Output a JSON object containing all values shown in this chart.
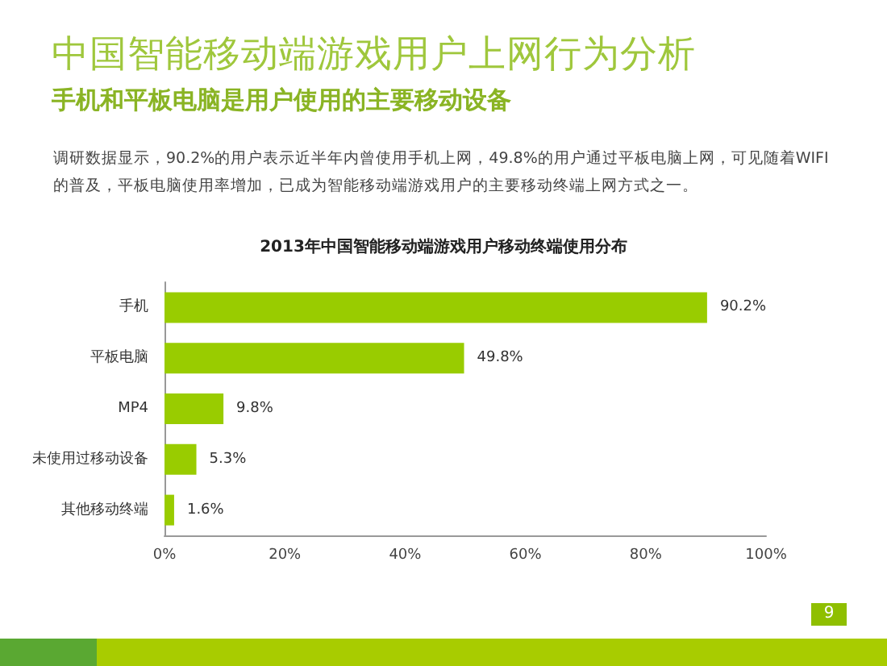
{
  "chart_data": {
    "type": "bar",
    "orientation": "horizontal",
    "title": "中国智能移动端游戏用户上网行为分析",
    "subtitle": "手机和平板电脑是用户使用的主要移动设备",
    "annotations": [
      "调研数据显示，90.2%的用户表示近半年内曾使用手机上网，49.8%的用户通过平板电脑上网，可见随着WIFI的普及，平板电脑使用率增加，已成为智能移动端游戏用户的主要移动终端上网方式之一。",
      "2013年中国智能移动端游戏用户移动终端使用分布",
      "9"
    ],
    "categories": [
      "手机",
      "平板电脑",
      "MP4",
      "未使用过移动设备",
      "其他移动终端"
    ],
    "values": [
      90.2,
      49.8,
      9.8,
      5.3,
      1.6
    ],
    "color": "#99cc00",
    "value_labels": [
      "90.2%",
      "49.8%",
      "9.8%",
      "5.3%",
      "1.6%"
    ],
    "xlim": [
      0,
      100
    ],
    "xticks": [
      {
        "value": 0,
        "label": "0%"
      },
      {
        "value": 20,
        "label": "20%"
      },
      {
        "value": 40,
        "label": "40%"
      },
      {
        "value": 60,
        "label": "60%"
      },
      {
        "value": 80,
        "label": "80%"
      },
      {
        "value": 100,
        "label": "100%"
      }
    ]
  }
}
